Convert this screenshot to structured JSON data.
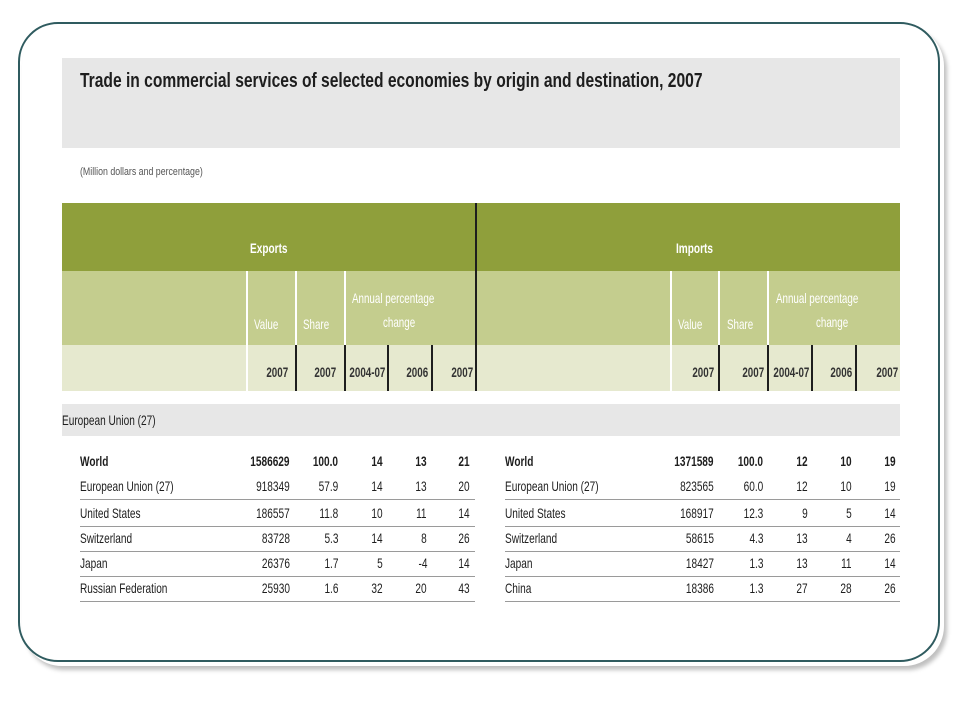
{
  "title": "Trade in commercial services of selected economies by origin and destination, 2007",
  "subtitle": "(Million dollars and percentage)",
  "header": {
    "exports_label": "Exports",
    "imports_label": "Imports",
    "value_label": "Value",
    "share_label": "Share",
    "annual_line1": "Annual percentage",
    "annual_line2": "change",
    "years": [
      "2007",
      "2007",
      "2004-07",
      "2006",
      "2007"
    ]
  },
  "section": "European Union (27)",
  "exports_rows": [
    {
      "name": "World",
      "value": "1586629",
      "share": "100.0",
      "p0407": "14",
      "p06": "13",
      "p07": "21"
    },
    {
      "name": "European Union (27)",
      "value": "918349",
      "share": "57.9",
      "p0407": "14",
      "p06": "13",
      "p07": "20"
    },
    {
      "name": "United States",
      "value": "186557",
      "share": "11.8",
      "p0407": "10",
      "p06": "11",
      "p07": "14"
    },
    {
      "name": "Switzerland",
      "value": "83728",
      "share": "5.3",
      "p0407": "14",
      "p06": "8",
      "p07": "26"
    },
    {
      "name": "Japan",
      "value": "26376",
      "share": "1.7",
      "p0407": "5",
      "p06": "-4",
      "p07": "14"
    },
    {
      "name": "Russian Federation",
      "value": "25930",
      "share": "1.6",
      "p0407": "32",
      "p06": "20",
      "p07": "43"
    }
  ],
  "imports_rows": [
    {
      "name": "World",
      "value": "1371589",
      "share": "100.0",
      "p0407": "12",
      "p06": "10",
      "p07": "19"
    },
    {
      "name": "European Union (27)",
      "value": "823565",
      "share": "60.0",
      "p0407": "12",
      "p06": "10",
      "p07": "19"
    },
    {
      "name": "United States",
      "value": "168917",
      "share": "12.3",
      "p0407": "9",
      "p06": "5",
      "p07": "14"
    },
    {
      "name": "Switzerland",
      "value": "58615",
      "share": "4.3",
      "p0407": "13",
      "p06": "4",
      "p07": "26"
    },
    {
      "name": "Japan",
      "value": "18427",
      "share": "1.3",
      "p0407": "13",
      "p06": "11",
      "p07": "14"
    },
    {
      "name": "China",
      "value": "18386",
      "share": "1.3",
      "p0407": "27",
      "p06": "28",
      "p07": "26"
    }
  ],
  "colors": {
    "header_dark": "#8f9f3b",
    "header_mid": "#c4cd8e",
    "header_light": "#e6e9cf",
    "frame": "#2f5b5f"
  }
}
